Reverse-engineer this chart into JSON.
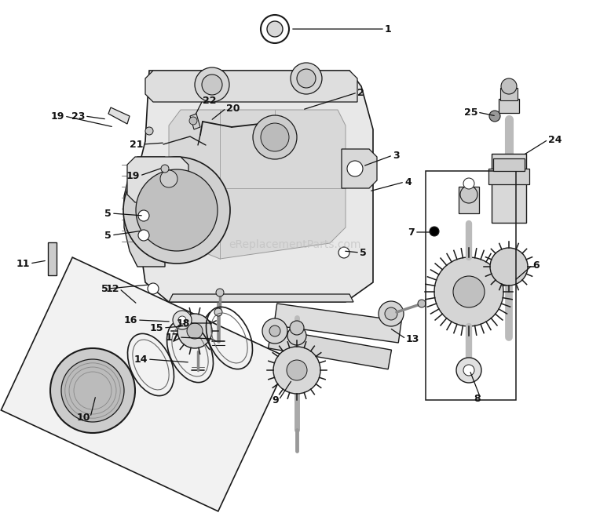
{
  "background_color": "#ffffff",
  "watermark_text": "eReplacementParts.com",
  "watermark_color": "#bbbbbb",
  "fig_width": 7.5,
  "fig_height": 6.63,
  "dpi": 100,
  "callouts": [
    [
      "1",
      490,
      37,
      370,
      37,
      "left"
    ],
    [
      "2",
      455,
      118,
      385,
      140,
      "left"
    ],
    [
      "3",
      500,
      198,
      462,
      212,
      "left"
    ],
    [
      "4",
      515,
      232,
      470,
      244,
      "left"
    ],
    [
      "5",
      142,
      272,
      183,
      275,
      "right"
    ],
    [
      "5",
      142,
      300,
      182,
      294,
      "right"
    ],
    [
      "5",
      138,
      368,
      190,
      363,
      "right"
    ],
    [
      "5",
      458,
      322,
      437,
      320,
      "left"
    ],
    [
      "6",
      678,
      338,
      655,
      358,
      "left"
    ],
    [
      "7",
      528,
      296,
      552,
      296,
      "right"
    ],
    [
      "8",
      612,
      508,
      598,
      472,
      "right"
    ],
    [
      "9",
      355,
      510,
      372,
      484,
      "right"
    ],
    [
      "10",
      115,
      532,
      122,
      504,
      "right"
    ],
    [
      "11",
      38,
      336,
      60,
      332,
      "right"
    ],
    [
      "12",
      152,
      368,
      175,
      388,
      "right"
    ],
    [
      "13",
      517,
      432,
      496,
      418,
      "left"
    ],
    [
      "14",
      188,
      458,
      242,
      462,
      "right"
    ],
    [
      "15",
      208,
      418,
      232,
      416,
      "right"
    ],
    [
      "16",
      175,
      408,
      218,
      410,
      "right"
    ],
    [
      "17",
      228,
      430,
      270,
      432,
      "right"
    ],
    [
      "18",
      242,
      412,
      272,
      412,
      "right"
    ],
    [
      "19",
      82,
      148,
      145,
      162,
      "right"
    ],
    [
      "19",
      178,
      224,
      207,
      214,
      "right"
    ],
    [
      "20",
      288,
      138,
      268,
      154,
      "left"
    ],
    [
      "21",
      182,
      184,
      210,
      182,
      "right"
    ],
    [
      "22",
      258,
      128,
      248,
      148,
      "left"
    ],
    [
      "23",
      108,
      148,
      136,
      152,
      "right"
    ],
    [
      "24",
      698,
      178,
      666,
      198,
      "left"
    ],
    [
      "25",
      608,
      143,
      632,
      148,
      "right"
    ]
  ]
}
